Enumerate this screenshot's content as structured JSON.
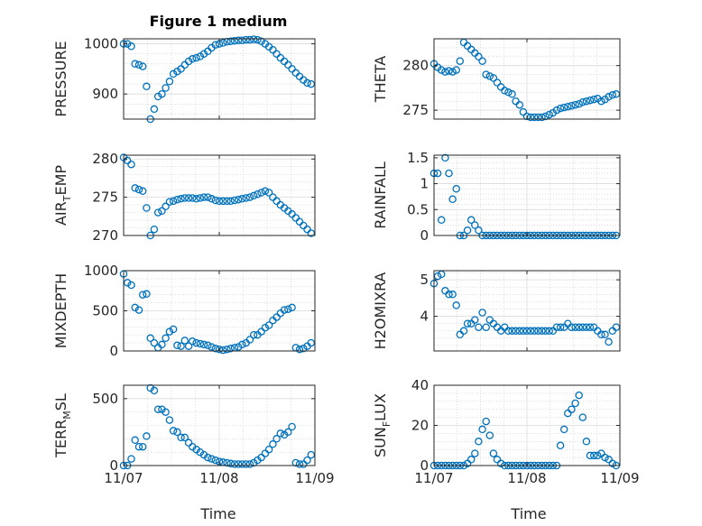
{
  "figure": {
    "title": "Figure 1 medium",
    "marker_color": "#0072BD"
  },
  "chart_data": [
    {
      "type": "scatter",
      "name": "pressure",
      "ylabel_main": "PRESSURE",
      "ylabel_sub": "",
      "xlabel": "",
      "xlim": [
        0,
        2
      ],
      "ylim": [
        850,
        1010
      ],
      "yticks": [
        900,
        1000
      ],
      "ytick_labels": [
        "900",
        "1000"
      ],
      "xticks": [
        0,
        1,
        2
      ],
      "xtick_labels": [],
      "x": [
        0.0,
        0.04,
        0.08,
        0.12,
        0.16,
        0.2,
        0.24,
        0.28,
        0.32,
        0.36,
        0.4,
        0.44,
        0.48,
        0.52,
        0.56,
        0.6,
        0.64,
        0.68,
        0.72,
        0.76,
        0.8,
        0.84,
        0.88,
        0.92,
        0.96,
        1.0,
        1.04,
        1.08,
        1.12,
        1.16,
        1.2,
        1.24,
        1.28,
        1.32,
        1.36,
        1.4,
        1.44,
        1.48,
        1.52,
        1.56,
        1.6,
        1.64,
        1.68,
        1.72,
        1.76,
        1.8,
        1.84,
        1.88,
        1.92,
        1.96
      ],
      "y": [
        1000,
        1000,
        995,
        960,
        958,
        955,
        915,
        850,
        870,
        895,
        900,
        912,
        925,
        940,
        945,
        950,
        958,
        965,
        970,
        972,
        975,
        980,
        985,
        992,
        998,
        1000,
        1002,
        1004,
        1005,
        1006,
        1007,
        1007,
        1008,
        1008,
        1009,
        1008,
        1005,
        1000,
        994,
        988,
        980,
        972,
        965,
        958,
        950,
        942,
        935,
        928,
        922,
        920
      ]
    },
    {
      "type": "scatter",
      "name": "theta",
      "ylabel_main": "THETA",
      "ylabel_sub": "",
      "xlabel": "",
      "xlim": [
        0,
        2
      ],
      "ylim": [
        274,
        283
      ],
      "yticks": [
        275,
        280
      ],
      "ytick_labels": [
        "275",
        "280"
      ],
      "xticks": [
        0,
        1,
        2
      ],
      "xtick_labels": [],
      "x": [
        0.0,
        0.04,
        0.08,
        0.12,
        0.16,
        0.2,
        0.24,
        0.28,
        0.32,
        0.36,
        0.4,
        0.44,
        0.48,
        0.52,
        0.56,
        0.6,
        0.64,
        0.68,
        0.72,
        0.76,
        0.8,
        0.84,
        0.88,
        0.92,
        0.96,
        1.0,
        1.04,
        1.08,
        1.12,
        1.16,
        1.2,
        1.24,
        1.28,
        1.32,
        1.36,
        1.4,
        1.44,
        1.48,
        1.52,
        1.56,
        1.6,
        1.64,
        1.68,
        1.72,
        1.76,
        1.8,
        1.84,
        1.88,
        1.92,
        1.96
      ],
      "y": [
        280.2,
        279.8,
        279.5,
        279.3,
        279.4,
        279.3,
        279.5,
        280.5,
        282.6,
        282.2,
        281.8,
        281.4,
        281.0,
        280.5,
        279.0,
        278.8,
        278.6,
        278.1,
        277.6,
        277.2,
        277.0,
        276.8,
        276.0,
        275.6,
        274.8,
        274.3,
        274.2,
        274.2,
        274.2,
        274.2,
        274.3,
        274.5,
        274.7,
        275.0,
        275.2,
        275.3,
        275.4,
        275.5,
        275.6,
        275.7,
        275.9,
        276.0,
        276.1,
        276.2,
        276.3,
        276.0,
        276.2,
        276.5,
        276.7,
        276.8
      ]
    },
    {
      "type": "scatter",
      "name": "air_temp",
      "ylabel_main": "AIR",
      "ylabel_sub": "TEMP",
      "xlabel": "",
      "xlim": [
        0,
        2
      ],
      "ylim": [
        270,
        280.5
      ],
      "yticks": [
        270,
        275,
        280
      ],
      "ytick_labels": [
        "270",
        "275",
        "280"
      ],
      "xticks": [
        0,
        1,
        2
      ],
      "xtick_labels": [],
      "x": [
        0.0,
        0.04,
        0.08,
        0.12,
        0.16,
        0.2,
        0.24,
        0.28,
        0.32,
        0.36,
        0.4,
        0.44,
        0.48,
        0.52,
        0.56,
        0.6,
        0.64,
        0.68,
        0.72,
        0.76,
        0.8,
        0.84,
        0.88,
        0.92,
        0.96,
        1.0,
        1.04,
        1.08,
        1.12,
        1.16,
        1.2,
        1.24,
        1.28,
        1.32,
        1.36,
        1.4,
        1.44,
        1.48,
        1.52,
        1.56,
        1.6,
        1.64,
        1.68,
        1.72,
        1.76,
        1.8,
        1.84,
        1.88,
        1.92,
        1.96
      ],
      "y": [
        280.2,
        279.8,
        279.3,
        276.2,
        276.0,
        275.8,
        273.6,
        270.0,
        270.8,
        273.0,
        273.2,
        273.8,
        274.4,
        274.5,
        274.7,
        274.8,
        274.9,
        274.9,
        274.9,
        274.8,
        274.9,
        275.0,
        275.0,
        274.8,
        274.6,
        274.5,
        274.5,
        274.5,
        274.5,
        274.6,
        274.7,
        274.8,
        274.9,
        275.0,
        275.2,
        275.4,
        275.6,
        275.8,
        275.6,
        275.0,
        274.5,
        274.0,
        273.6,
        273.2,
        272.8,
        272.3,
        271.8,
        271.3,
        270.8,
        270.3
      ]
    },
    {
      "type": "scatter",
      "name": "rainfall",
      "ylabel_main": "RAINFALL",
      "ylabel_sub": "",
      "xlabel": "",
      "xlim": [
        0,
        2
      ],
      "ylim": [
        0,
        1.55
      ],
      "yticks": [
        0,
        0.5,
        1,
        1.5
      ],
      "ytick_labels": [
        "0",
        "0.5",
        "1",
        "1.5"
      ],
      "xticks": [
        0,
        1,
        2
      ],
      "xtick_labels": [],
      "x": [
        0.0,
        0.04,
        0.08,
        0.12,
        0.16,
        0.2,
        0.24,
        0.28,
        0.32,
        0.36,
        0.4,
        0.44,
        0.48,
        0.52,
        0.56,
        0.6,
        0.64,
        0.68,
        0.72,
        0.76,
        0.8,
        0.84,
        0.88,
        0.92,
        0.96,
        1.0,
        1.04,
        1.08,
        1.12,
        1.16,
        1.2,
        1.24,
        1.28,
        1.32,
        1.36,
        1.4,
        1.44,
        1.48,
        1.52,
        1.56,
        1.6,
        1.64,
        1.68,
        1.72,
        1.76,
        1.8,
        1.84,
        1.88,
        1.92,
        1.96
      ],
      "y": [
        1.2,
        1.2,
        0.3,
        1.5,
        1.2,
        0.7,
        0.9,
        0.0,
        0.0,
        0.1,
        0.3,
        0.2,
        0.1,
        0.0,
        0.0,
        0.0,
        0.0,
        0.0,
        0.0,
        0.0,
        0.0,
        0.0,
        0.0,
        0.0,
        0.0,
        0.0,
        0.0,
        0.0,
        0.0,
        0.0,
        0.0,
        0.0,
        0.0,
        0.0,
        0.0,
        0.0,
        0.0,
        0.0,
        0.0,
        0.0,
        0.0,
        0.0,
        0.0,
        0.0,
        0.0,
        0.0,
        0.0,
        0.0,
        0.0,
        0.0
      ]
    },
    {
      "type": "scatter",
      "name": "mixdepth",
      "ylabel_main": "MIXDEPTH",
      "ylabel_sub": "",
      "xlabel": "",
      "xlim": [
        0,
        2
      ],
      "ylim": [
        0,
        1000
      ],
      "yticks": [
        0,
        500,
        1000
      ],
      "ytick_labels": [
        "0",
        "500",
        "1000"
      ],
      "xticks": [
        0,
        1,
        2
      ],
      "xtick_labels": [],
      "x": [
        0.0,
        0.04,
        0.08,
        0.12,
        0.16,
        0.2,
        0.24,
        0.28,
        0.32,
        0.36,
        0.4,
        0.44,
        0.48,
        0.52,
        0.56,
        0.6,
        0.64,
        0.68,
        0.72,
        0.76,
        0.8,
        0.84,
        0.88,
        0.92,
        0.96,
        1.0,
        1.04,
        1.08,
        1.12,
        1.16,
        1.2,
        1.24,
        1.28,
        1.32,
        1.36,
        1.4,
        1.44,
        1.48,
        1.52,
        1.56,
        1.6,
        1.64,
        1.68,
        1.72,
        1.76,
        1.8,
        1.84,
        1.88,
        1.92,
        1.96
      ],
      "y": [
        960,
        850,
        820,
        540,
        510,
        700,
        710,
        160,
        100,
        40,
        80,
        160,
        240,
        270,
        70,
        60,
        130,
        60,
        120,
        100,
        90,
        80,
        70,
        50,
        30,
        20,
        10,
        20,
        30,
        40,
        50,
        80,
        100,
        140,
        200,
        200,
        240,
        290,
        320,
        380,
        420,
        470,
        510,
        520,
        540,
        40,
        20,
        30,
        60,
        100
      ]
    },
    {
      "type": "scatter",
      "name": "h2omixra",
      "ylabel_main": "H2OMIXRA",
      "ylabel_sub": "",
      "xlabel": "",
      "xlim": [
        0,
        2
      ],
      "ylim": [
        3.05,
        5.25
      ],
      "yticks": [
        4,
        5
      ],
      "ytick_labels": [
        "4",
        "5"
      ],
      "xticks": [
        0,
        1,
        2
      ],
      "xtick_labels": [],
      "x": [
        0.0,
        0.04,
        0.08,
        0.12,
        0.16,
        0.2,
        0.24,
        0.28,
        0.32,
        0.36,
        0.4,
        0.44,
        0.48,
        0.52,
        0.56,
        0.6,
        0.64,
        0.68,
        0.72,
        0.76,
        0.8,
        0.84,
        0.88,
        0.92,
        0.96,
        1.0,
        1.04,
        1.08,
        1.12,
        1.16,
        1.2,
        1.24,
        1.28,
        1.32,
        1.36,
        1.4,
        1.44,
        1.48,
        1.52,
        1.56,
        1.6,
        1.64,
        1.68,
        1.72,
        1.76,
        1.8,
        1.84,
        1.88,
        1.92,
        1.96
      ],
      "y": [
        4.9,
        5.1,
        5.15,
        4.7,
        4.6,
        4.6,
        4.3,
        3.5,
        3.6,
        3.8,
        3.8,
        3.9,
        3.7,
        4.1,
        3.7,
        3.9,
        3.8,
        3.7,
        3.6,
        3.7,
        3.6,
        3.6,
        3.6,
        3.6,
        3.6,
        3.6,
        3.6,
        3.6,
        3.6,
        3.6,
        3.6,
        3.6,
        3.6,
        3.7,
        3.7,
        3.7,
        3.8,
        3.7,
        3.7,
        3.7,
        3.7,
        3.7,
        3.7,
        3.7,
        3.6,
        3.5,
        3.5,
        3.3,
        3.6,
        3.7
      ]
    },
    {
      "type": "scatter",
      "name": "terr_msl",
      "ylabel_main": "TERR",
      "ylabel_sub": "MSL",
      "xlabel": "",
      "xlim": [
        0,
        2
      ],
      "ylim": [
        0,
        600
      ],
      "yticks": [
        0,
        500
      ],
      "ytick_labels": [
        "0",
        "500"
      ],
      "xticks": [
        0,
        1,
        2
      ],
      "xtick_labels": [
        "11/07",
        "11/08",
        "11/09"
      ],
      "x": [
        0.0,
        0.04,
        0.08,
        0.12,
        0.16,
        0.2,
        0.24,
        0.28,
        0.32,
        0.36,
        0.4,
        0.44,
        0.48,
        0.52,
        0.56,
        0.6,
        0.64,
        0.68,
        0.72,
        0.76,
        0.8,
        0.84,
        0.88,
        0.92,
        0.96,
        1.0,
        1.04,
        1.08,
        1.12,
        1.16,
        1.2,
        1.24,
        1.28,
        1.32,
        1.36,
        1.4,
        1.44,
        1.48,
        1.52,
        1.56,
        1.6,
        1.64,
        1.68,
        1.72,
        1.76,
        1.8,
        1.84,
        1.88,
        1.92,
        1.96
      ],
      "y": [
        0,
        0,
        50,
        190,
        140,
        140,
        220,
        580,
        560,
        420,
        420,
        400,
        340,
        260,
        250,
        210,
        210,
        170,
        140,
        120,
        100,
        80,
        60,
        50,
        40,
        30,
        25,
        20,
        15,
        10,
        10,
        10,
        10,
        10,
        20,
        40,
        60,
        90,
        120,
        160,
        200,
        240,
        230,
        250,
        290,
        20,
        10,
        10,
        40,
        80
      ]
    },
    {
      "type": "scatter",
      "name": "sun_flux",
      "ylabel_main": "SUN",
      "ylabel_sub": "FLUX",
      "xlabel": "",
      "xlim": [
        0,
        2
      ],
      "ylim": [
        0,
        40
      ],
      "yticks": [
        0,
        20,
        40
      ],
      "ytick_labels": [
        "0",
        "20",
        "40"
      ],
      "xticks": [
        0,
        1,
        2
      ],
      "xtick_labels": [
        "11/07",
        "11/08",
        "11/09"
      ],
      "x": [
        0.0,
        0.04,
        0.08,
        0.12,
        0.16,
        0.2,
        0.24,
        0.28,
        0.32,
        0.36,
        0.4,
        0.44,
        0.48,
        0.52,
        0.56,
        0.6,
        0.64,
        0.68,
        0.72,
        0.76,
        0.8,
        0.84,
        0.88,
        0.92,
        0.96,
        1.0,
        1.04,
        1.08,
        1.12,
        1.16,
        1.2,
        1.24,
        1.28,
        1.32,
        1.36,
        1.4,
        1.44,
        1.48,
        1.52,
        1.56,
        1.6,
        1.64,
        1.68,
        1.72,
        1.76,
        1.8,
        1.84,
        1.88,
        1.92,
        1.96
      ],
      "y": [
        0,
        0,
        0,
        0,
        0,
        0,
        0,
        0,
        0,
        1,
        3,
        6,
        12,
        18,
        22,
        15,
        6,
        3,
        1,
        0,
        0,
        0,
        0,
        0,
        0,
        0,
        0,
        0,
        0,
        0,
        0,
        0,
        0,
        0,
        10,
        18,
        26,
        28,
        31,
        35,
        24,
        12,
        5,
        5,
        5,
        6,
        4,
        3,
        1,
        0
      ]
    }
  ],
  "x_axis_label": "Time"
}
